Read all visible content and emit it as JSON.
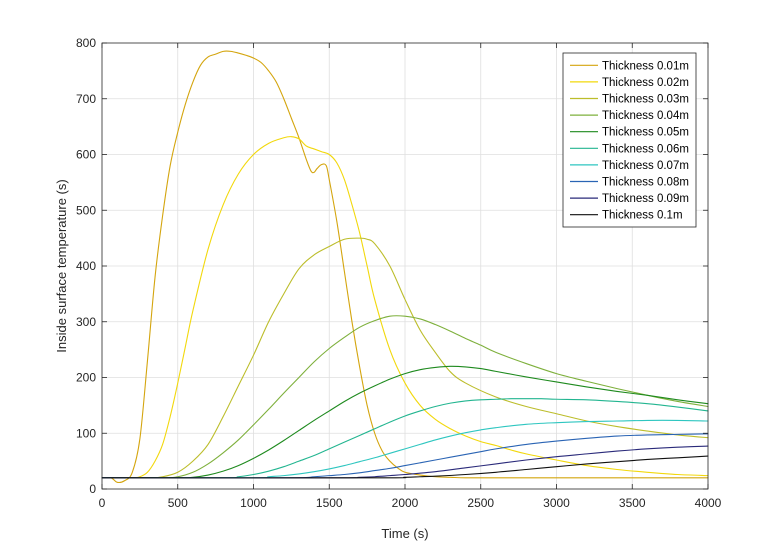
{
  "chart_data": {
    "type": "line",
    "title": "",
    "xlabel": "Time (s)",
    "ylabel": "Inside surface temperature (s)",
    "xlim": [
      0,
      4000
    ],
    "ylim": [
      0,
      800
    ],
    "xticks": [
      0,
      500,
      1000,
      1500,
      2000,
      2500,
      3000,
      3500,
      4000
    ],
    "yticks": [
      0,
      100,
      200,
      300,
      400,
      500,
      600,
      700,
      800
    ],
    "xtick_labels": [
      "0",
      "500",
      "1000",
      "1500",
      "2000",
      "2500",
      "3000",
      "3500",
      "4000"
    ],
    "ytick_labels": [
      "0",
      "100",
      "200",
      "300",
      "400",
      "500",
      "600",
      "700",
      "800"
    ],
    "grid": true,
    "legend_position": "top-right",
    "series": [
      {
        "name": "Thickness 0.01m",
        "color": "#d4a50e",
        "x": [
          0,
          60,
          100,
          150,
          200,
          250,
          300,
          350,
          400,
          450,
          500,
          550,
          600,
          650,
          700,
          750,
          800,
          850,
          900,
          950,
          1000,
          1050,
          1100,
          1150,
          1200,
          1250,
          1300,
          1350,
          1380,
          1400,
          1420,
          1450,
          1480,
          1500,
          1550,
          1600,
          1650,
          1700,
          1750,
          1800,
          1850,
          1900,
          1950,
          2000,
          2100,
          2200,
          2300,
          2400,
          2600,
          3000,
          3500,
          4000
        ],
        "y": [
          20,
          20,
          12,
          15,
          30,
          90,
          230,
          380,
          490,
          580,
          640,
          690,
          730,
          760,
          775,
          780,
          785,
          785,
          782,
          778,
          773,
          765,
          750,
          730,
          700,
          665,
          630,
          590,
          570,
          568,
          575,
          582,
          580,
          555,
          480,
          390,
          300,
          220,
          150,
          100,
          68,
          50,
          38,
          30,
          25,
          22,
          21,
          20,
          20,
          20,
          20,
          20
        ]
      },
      {
        "name": "Thickness 0.02m",
        "color": "#f2d80c",
        "x": [
          0,
          200,
          250,
          300,
          350,
          400,
          450,
          500,
          550,
          600,
          700,
          800,
          900,
          1000,
          1100,
          1200,
          1250,
          1300,
          1350,
          1400,
          1450,
          1500,
          1550,
          1600,
          1650,
          1700,
          1750,
          1800,
          1900,
          2000,
          2100,
          2200,
          2300,
          2400,
          2500,
          2600,
          2700,
          2800,
          3000,
          3200,
          3400,
          3600,
          3800,
          4000
        ],
        "y": [
          20,
          20,
          22,
          30,
          50,
          80,
          130,
          190,
          255,
          320,
          430,
          510,
          565,
          600,
          620,
          630,
          632,
          628,
          615,
          610,
          605,
          600,
          585,
          555,
          510,
          460,
          400,
          340,
          250,
          190,
          150,
          125,
          108,
          95,
          85,
          78,
          70,
          63,
          52,
          42,
          35,
          30,
          26,
          24
        ]
      },
      {
        "name": "Thickness 0.03m",
        "color": "#bcbd2a",
        "x": [
          0,
          300,
          400,
          500,
          600,
          700,
          800,
          900,
          1000,
          1100,
          1200,
          1300,
          1400,
          1500,
          1600,
          1700,
          1750,
          1800,
          1900,
          2000,
          2100,
          2200,
          2300,
          2400,
          2600,
          2800,
          3000,
          3200,
          3400,
          3600,
          3800,
          4000
        ],
        "y": [
          20,
          20,
          22,
          30,
          50,
          80,
          130,
          185,
          240,
          300,
          350,
          395,
          420,
          435,
          448,
          450,
          448,
          440,
          400,
          340,
          285,
          245,
          210,
          190,
          165,
          148,
          135,
          122,
          112,
          104,
          97,
          92
        ]
      },
      {
        "name": "Thickness 0.04m",
        "color": "#7eb03c",
        "x": [
          0,
          400,
          500,
          600,
          700,
          800,
          900,
          1000,
          1100,
          1200,
          1300,
          1400,
          1500,
          1600,
          1700,
          1800,
          1900,
          2000,
          2100,
          2200,
          2300,
          2400,
          2500,
          2600,
          2800,
          3000,
          3200,
          3400,
          3600,
          3800,
          4000
        ],
        "y": [
          20,
          20,
          22,
          30,
          45,
          65,
          88,
          115,
          143,
          172,
          200,
          228,
          252,
          272,
          290,
          302,
          310,
          310,
          305,
          295,
          283,
          270,
          258,
          245,
          225,
          207,
          193,
          180,
          168,
          157,
          148
        ]
      },
      {
        "name": "Thickness 0.05m",
        "color": "#1e8a1e",
        "x": [
          0,
          500,
          600,
          700,
          800,
          900,
          1000,
          1100,
          1200,
          1300,
          1400,
          1500,
          1600,
          1700,
          1800,
          1900,
          2000,
          2100,
          2200,
          2300,
          2400,
          2500,
          2600,
          2800,
          3000,
          3200,
          3400,
          3600,
          3800,
          4000
        ],
        "y": [
          20,
          20,
          21,
          25,
          32,
          42,
          55,
          70,
          87,
          105,
          123,
          140,
          157,
          172,
          185,
          197,
          207,
          214,
          218,
          220,
          219,
          216,
          211,
          201,
          192,
          183,
          175,
          168,
          160,
          153
        ]
      },
      {
        "name": "Thickness 0.06m",
        "color": "#22b590",
        "x": [
          0,
          800,
          900,
          1000,
          1100,
          1200,
          1300,
          1400,
          1500,
          1600,
          1700,
          1800,
          1900,
          2000,
          2100,
          2200,
          2300,
          2400,
          2500,
          2600,
          2700,
          2800,
          2900,
          3000,
          3200,
          3400,
          3600,
          3800,
          4000
        ],
        "y": [
          20,
          20,
          22,
          26,
          32,
          40,
          50,
          60,
          72,
          84,
          96,
          108,
          120,
          131,
          140,
          148,
          154,
          158,
          160,
          161,
          162,
          162,
          162,
          161,
          160,
          157,
          153,
          147,
          140
        ]
      },
      {
        "name": "Thickness 0.07m",
        "color": "#2ec6c0",
        "x": [
          0,
          1000,
          1100,
          1200,
          1300,
          1400,
          1500,
          1600,
          1700,
          1800,
          1900,
          2000,
          2100,
          2200,
          2300,
          2400,
          2500,
          2600,
          2800,
          3000,
          3200,
          3400,
          3600,
          3800,
          4000
        ],
        "y": [
          20,
          20,
          22,
          24,
          27,
          31,
          36,
          42,
          49,
          56,
          64,
          72,
          80,
          88,
          95,
          101,
          106,
          110,
          116,
          119,
          121,
          122,
          123,
          123,
          122
        ]
      },
      {
        "name": "Thickness 0.08m",
        "color": "#2a64b4",
        "x": [
          0,
          1200,
          1400,
          1500,
          1600,
          1700,
          1800,
          1900,
          2000,
          2100,
          2200,
          2300,
          2400,
          2500,
          2600,
          2800,
          3000,
          3200,
          3400,
          3600,
          3800,
          4000
        ],
        "y": [
          20,
          20,
          22,
          24,
          26,
          29,
          33,
          37,
          42,
          47,
          52,
          57,
          62,
          67,
          72,
          80,
          86,
          91,
          95,
          97,
          98,
          99
        ]
      },
      {
        "name": "Thickness 0.09m",
        "color": "#2a2a7a",
        "x": [
          0,
          1500,
          1700,
          1800,
          1900,
          2000,
          2200,
          2400,
          2600,
          2800,
          3000,
          3200,
          3400,
          3600,
          3800,
          4000
        ],
        "y": [
          20,
          20,
          21,
          22,
          24,
          26,
          31,
          38,
          45,
          52,
          58,
          63,
          68,
          72,
          75,
          77
        ]
      },
      {
        "name": "Thickness 0.1m",
        "color": "#111111",
        "x": [
          0,
          1800,
          2000,
          2100,
          2200,
          2400,
          2600,
          2800,
          3000,
          3200,
          3400,
          3600,
          3800,
          4000
        ],
        "y": [
          20,
          20,
          21,
          22,
          23,
          26,
          30,
          35,
          40,
          45,
          49,
          53,
          56,
          59
        ]
      }
    ]
  }
}
